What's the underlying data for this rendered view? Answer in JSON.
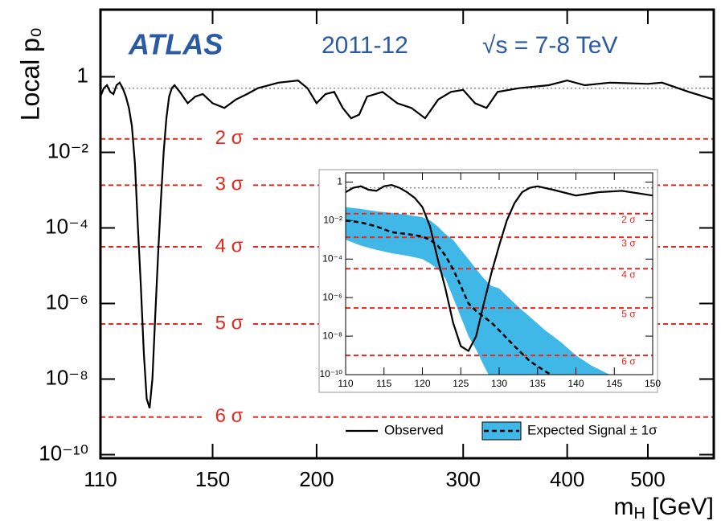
{
  "chart_data": [
    {
      "type": "line",
      "label": "ATLAS",
      "period": "2011-12",
      "energy": "√s = 7-8 TeV",
      "ylabel": "Local p₀",
      "xlabel": [
        "m",
        "H",
        " [GeV]"
      ],
      "xscale": "log",
      "yscale": "log",
      "xlim": [
        110,
        600
      ],
      "ylim": [
        8e-11,
        60
      ],
      "xticks": [
        110,
        150,
        200,
        300,
        400,
        500
      ],
      "yticks": [
        1,
        {
          "value": 0.01,
          "label": "10⁻²"
        },
        {
          "value": 0.0001,
          "label": "10⁻⁴"
        },
        {
          "value": 1e-06,
          "label": "10⁻⁶"
        },
        {
          "value": 1e-08,
          "label": "10⁻⁸"
        },
        {
          "value": 1e-10,
          "label": "10⁻¹⁰"
        }
      ],
      "reference": 0.5,
      "reference_color": "#888888",
      "sigma_color": "#e8281e",
      "sigma_lines": [
        {
          "value": 0.02275,
          "label": "2 σ"
        },
        {
          "value": 0.00135,
          "label": "3 σ"
        },
        {
          "value": 3.17e-05,
          "label": "4 σ"
        },
        {
          "value": 2.87e-07,
          "label": "5 σ"
        },
        {
          "value": 9.87e-10,
          "label": "6 σ"
        }
      ],
      "series": [
        {
          "name": "Observed",
          "color": "#000000",
          "x": [
            110,
            111,
            112,
            113,
            114,
            115,
            116,
            117,
            118,
            119,
            120,
            121,
            122,
            123,
            124,
            125,
            126,
            127,
            128,
            129,
            130,
            131,
            132,
            133,
            134,
            135,
            137,
            140,
            143,
            146,
            150,
            155,
            160,
            165,
            170,
            180,
            190,
            195,
            200,
            205,
            210,
            215,
            220,
            225,
            230,
            240,
            250,
            260,
            270,
            280,
            290,
            300,
            310,
            320,
            330,
            350,
            380,
            400,
            420,
            450,
            500,
            520,
            560,
            600
          ],
          "values": [
            0.3,
            0.5,
            0.6,
            0.4,
            0.35,
            0.6,
            0.7,
            0.5,
            0.3,
            0.15,
            0.05,
            0.005,
            0.0001,
            3e-06,
            5e-08,
            3e-09,
            1.7e-09,
            1e-08,
            5e-07,
            2e-05,
            0.0005,
            0.01,
            0.08,
            0.3,
            0.5,
            0.6,
            0.4,
            0.2,
            0.3,
            0.35,
            0.2,
            0.15,
            0.25,
            0.35,
            0.5,
            0.7,
            0.8,
            0.5,
            0.2,
            0.35,
            0.4,
            0.15,
            0.08,
            0.1,
            0.3,
            0.4,
            0.2,
            0.15,
            0.08,
            0.25,
            0.4,
            0.45,
            0.2,
            0.15,
            0.4,
            0.5,
            0.6,
            0.8,
            0.6,
            0.7,
            0.65,
            0.7,
            0.4,
            0.25
          ]
        }
      ]
    },
    {
      "type": "line",
      "yscale": "log",
      "xlim": [
        110,
        150
      ],
      "ylim": [
        1e-10,
        3
      ],
      "xticks": [
        110,
        115,
        120,
        125,
        130,
        135,
        140,
        145,
        150
      ],
      "yticks": [
        1,
        {
          "value": 0.01,
          "label": "10⁻²"
        },
        {
          "value": 0.0001,
          "label": "10⁻⁴"
        },
        {
          "value": 1e-06,
          "label": "10⁻⁶"
        },
        {
          "value": 1e-08,
          "label": "10⁻⁸"
        },
        {
          "value": 1e-10,
          "label": "10⁻¹⁰"
        }
      ],
      "reference": 0.5,
      "reference_color": "#888888",
      "sigma_color": "#e8281e",
      "sigma_lines": [
        {
          "value": 0.02275,
          "label": "2 σ"
        },
        {
          "value": 0.00135,
          "label": "3 σ"
        },
        {
          "value": 3.17e-05,
          "label": "4 σ"
        },
        {
          "value": 2.87e-07,
          "label": "5 σ"
        },
        {
          "value": 9.87e-10,
          "label": "6 σ"
        }
      ],
      "legend": "below",
      "series": [
        {
          "name": "Observed",
          "color": "#000000",
          "x": [
            110,
            111,
            112,
            113,
            114,
            115,
            116,
            117,
            118,
            119,
            120,
            121,
            122,
            123,
            124,
            125,
            126,
            127,
            128,
            129,
            130,
            131,
            132,
            133,
            134,
            135,
            137,
            140,
            143,
            146,
            150
          ],
          "values": [
            0.3,
            0.5,
            0.6,
            0.4,
            0.35,
            0.6,
            0.7,
            0.5,
            0.3,
            0.15,
            0.05,
            0.005,
            0.0001,
            3e-06,
            5e-08,
            3e-09,
            1.7e-09,
            1e-08,
            5e-07,
            2e-05,
            0.0005,
            0.01,
            0.08,
            0.3,
            0.5,
            0.6,
            0.4,
            0.2,
            0.3,
            0.35,
            0.2
          ]
        },
        {
          "name": "Expected Signal ± 1σ",
          "color": "#3fb8e8",
          "line_color": "#000000",
          "x": [
            110,
            112,
            114,
            116,
            118,
            120,
            121,
            122,
            123,
            124,
            125,
            126,
            127,
            128,
            129,
            130,
            132,
            134,
            136,
            138,
            140,
            142,
            144,
            146
          ],
          "values": [
            0.01,
            0.008,
            0.005,
            0.0025,
            0.002,
            0.0015,
            0.001,
            0.0005,
            0.00015,
            3e-05,
            4e-06,
            5e-07,
            2e-07,
            1e-07,
            5e-08,
            2e-08,
            3e-09,
            5e-10,
            1.5e-10,
            5e-11,
            null,
            null,
            null,
            null
          ],
          "upper": [
            0.05,
            0.04,
            0.03,
            0.025,
            0.02,
            0.015,
            0.01,
            0.005,
            0.002,
            0.001,
            0.0003,
            0.0001,
            3e-05,
            1e-05,
            4e-06,
            3e-06,
            5e-07,
            1e-07,
            2e-08,
            5e-09,
            1e-09,
            3e-10,
            1.2e-10,
            5e-11
          ],
          "lower": [
            0.001,
            0.0005,
            0.0003,
            0.0002,
            0.00015,
            0.0001,
            6e-05,
            3e-05,
            1e-05,
            1e-06,
            1e-07,
            1e-08,
            2e-09,
            3e-10,
            5e-11,
            null,
            null,
            null,
            null,
            null,
            null,
            null,
            null,
            null
          ]
        }
      ]
    }
  ]
}
